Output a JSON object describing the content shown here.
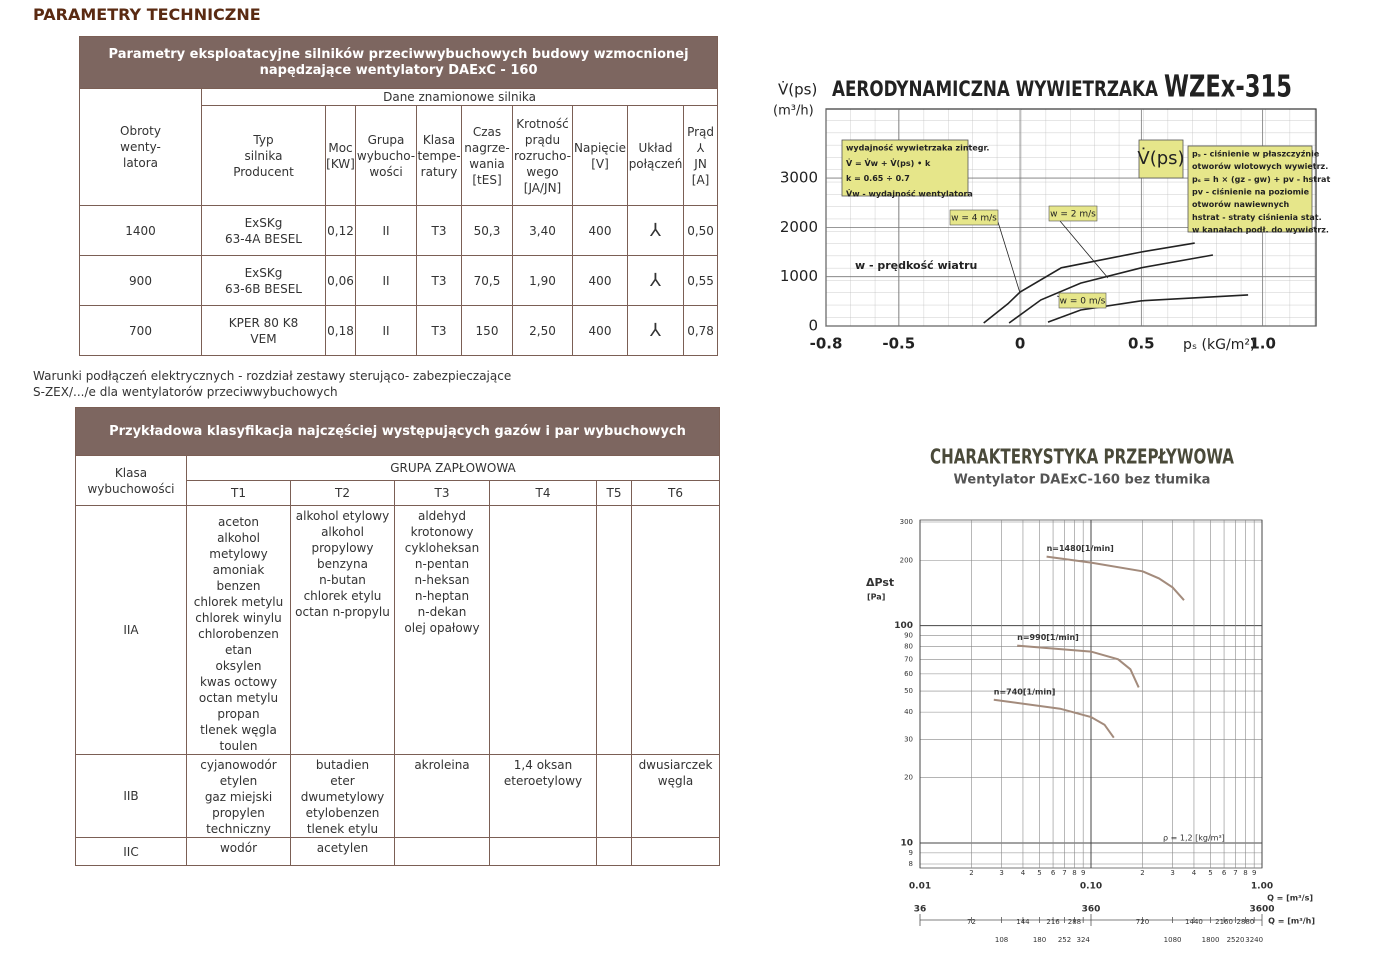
{
  "heading": "PARAMETRY TECHNICZNE",
  "table1": {
    "title": [
      "Parametry eksploatacyjne silników przeciwwybuchowych budowy wzmocnionej",
      "napędzające wentylatory DAExC - 160"
    ],
    "first_header": "Obroty\nwenty-\nlatora",
    "group_header": "Dane znamionowe silnika",
    "sub_headers": [
      "Typ\nsilnika\nProducent",
      "Moc\n[KW]",
      "Grupa\nwybucho-\nwości",
      "Klasa\ntempe-\nratury",
      "Czas\nnagrze-\nwania\n[tES]",
      "Krotność\nprądu\nrozrucho-\nwego\n[JA/JN]",
      "Napięcie\n[V]",
      "Układ\npołączeń",
      "Prąd\n⅄\nJN\n[A]"
    ],
    "rows": [
      [
        "1400",
        "ExSKg\n63-4A BESEL",
        "0,12",
        "II",
        "T3",
        "50,3",
        "3,40",
        "400",
        "⅄",
        "0,50"
      ],
      [
        "900",
        "ExSKg\n63-6B BESEL",
        "0,06",
        "II",
        "T3",
        "70,5",
        "1,90",
        "400",
        "⅄",
        "0,55"
      ],
      [
        "700",
        "KPER 80 K8\nVEM",
        "0,18",
        "II",
        "T3",
        "150",
        "2,50",
        "400",
        "⅄",
        "0,78"
      ]
    ]
  },
  "note": [
    "Warunki podłączeń elektrycznych - rozdział zestawy sterująco- zabezpieczające",
    "S-ZEX/.../e dla wentylatorów przeciwwybuchowych"
  ],
  "table2": {
    "title": "Przykładowa klasyfikacja najczęściej występujących gazów i par wybuchowych",
    "first_header": "Klasa\nwybuchowości",
    "group_header": "GRUPA ZAPŁOWOWA",
    "columns": [
      "T1",
      "T2",
      "T3",
      "T4",
      "T5",
      "T6"
    ],
    "rows": [
      {
        "class": "IIA",
        "cells": [
          "aceton\nalkohol metylowy\namoniak\nbenzen\nchlorek metylu\nchlorek winylu\nchlorobenzen\netan\noksylen\nkwas octowy\noctan metylu\npropan\ntlenek węgla\ntoulen",
          "alkohol etylowy\nalkohol\npropylowy\nbenzyna\nn-butan\nchlorek etylu\noctan n-propylu",
          "aldehyd\nkrotonowy\ncykloheksan\nn-pentan\nn-heksan\nn-heptan\nn-dekan\nolej opałowy",
          null,
          null,
          null
        ]
      },
      {
        "class": "IIB",
        "cells": [
          "cyjanowodór\netylen\ngaz miejski\npropylen\ntechniczny",
          "butadien\neter\ndwumetylowy\netylobenzen\ntlenek etylu",
          "akroleina",
          "1,4 oksan\neteroetylowy",
          null,
          "dwusiarczek\nwęgla"
        ]
      },
      {
        "class": "IIC",
        "cells": [
          "wodór",
          "acetylen",
          null,
          null,
          null,
          null
        ]
      }
    ]
  },
  "chart_data": [
    {
      "type": "line",
      "title": "AERODYNAMICZNA WYWIETRZAKA",
      "model": "WZEx-315",
      "y_label": "V̇(ps)",
      "y_unit": "(m³/h)",
      "x_label": "pₛ (kG/m²)",
      "xlim": [
        -0.8,
        1.22
      ],
      "ylim": [
        0,
        4400
      ],
      "xticks": [
        -0.8,
        -0.5,
        0,
        0.5,
        {
          "value": 1,
          "label": "1.0"
        }
      ],
      "yticks": [
        0,
        1000,
        2000,
        3000
      ],
      "grid": true,
      "series": [
        {
          "name": "w = 4 m/s",
          "color": "#222222",
          "x": [
            -0.15,
            -0.05,
            0,
            0.17,
            0.5,
            0.72
          ],
          "values": [
            60,
            450,
            690,
            1180,
            1500,
            1680
          ]
        },
        {
          "name": "w = 2 m/s",
          "color": "#222222",
          "x": [
            -0.045,
            0.086,
            0.25,
            0.5,
            0.795
          ],
          "values": [
            60,
            530,
            870,
            1180,
            1440
          ]
        },
        {
          "name": "w = 0 m/s",
          "color": "#222222",
          "x": [
            0.115,
            0.25,
            0.5,
            0.94
          ],
          "values": [
            80,
            325,
            510,
            630
          ]
        }
      ],
      "boxes": [
        [
          "wydajność wywietrzaka zintegr.",
          "V̇ = V̇w + V̇(ps) • k",
          "k = 0.65 ÷ 0.7",
          "V̇w - wydajność wentylatora"
        ],
        [
          "V̇(ps)"
        ],
        [
          "pₛ - ciśnienie w płaszczyźnie",
          "otworów wlotowych wywietrz.",
          "pₛ = h × (gz - gw) + pv - hstrat",
          "pv - ciśnienie na poziomie",
          "otworów nawiewnych",
          "hstrat - straty ciśnienia stat.",
          "w kanałach podł. do wywietrz."
        ]
      ],
      "note": "w - prędkość wiatru"
    },
    {
      "type": "line",
      "title": "CHARAKTERYSTYKA PRZEPŁYWOWA",
      "subtitle": "Wentylator DAExC-160 bez tłumika",
      "y_label": "ΔPst",
      "y_unit": "[Pa]",
      "x_label": "Q = [m³/s]",
      "x2_label": "Q = [m³/h]",
      "log_x": true,
      "log_y": true,
      "xlim": [
        0.01,
        1
      ],
      "ylim": [
        8,
        300
      ],
      "x2lim": [
        36,
        3600
      ],
      "xticks": [
        {
          "value": 0.01,
          "label": "0.01"
        },
        {
          "value": 0.02,
          "label": "2"
        },
        {
          "value": 0.03,
          "label": "3"
        },
        {
          "value": 0.04,
          "label": "4"
        },
        {
          "value": 0.05,
          "label": "5"
        },
        {
          "value": 0.06,
          "label": "6"
        },
        {
          "value": 0.07,
          "label": "7"
        },
        {
          "value": 0.08,
          "label": "8"
        },
        {
          "value": 0.09,
          "label": "9"
        },
        {
          "value": 0.1,
          "label": "0.10"
        },
        {
          "value": 0.2,
          "label": "2"
        },
        {
          "value": 0.3,
          "label": "3"
        },
        {
          "value": 0.4,
          "label": "4"
        },
        {
          "value": 0.5,
          "label": "5"
        },
        {
          "value": 0.6,
          "label": "6"
        },
        {
          "value": 0.7,
          "label": "7"
        },
        {
          "value": 0.8,
          "label": "8"
        },
        {
          "value": 0.9,
          "label": "9"
        },
        {
          "value": 1,
          "label": "1.00"
        }
      ],
      "x2ticks": [
        36,
        72,
        108,
        144,
        180,
        216,
        252,
        288,
        324,
        360,
        720,
        1080,
        1440,
        1800,
        2160,
        2520,
        2880,
        3240,
        3600
      ],
      "yticks": [
        300,
        200,
        100,
        90,
        80,
        70,
        60,
        50,
        40,
        30,
        20,
        10,
        9,
        8
      ],
      "grid": true,
      "series": [
        {
          "name": "n=1480[1/min]",
          "color": "#a38b7c",
          "x": [
            0.055,
            0.1,
            0.2,
            0.25,
            0.3,
            0.35
          ],
          "values": [
            208,
            195,
            178,
            165,
            150,
            131
          ]
        },
        {
          "name": "n=990[1/min]",
          "color": "#a38b7c",
          "x": [
            0.037,
            0.1,
            0.144,
            0.17,
            0.19
          ],
          "values": [
            81,
            76,
            70,
            63,
            52
          ]
        },
        {
          "name": "n=740[1/min]",
          "color": "#a38b7c",
          "x": [
            0.027,
            0.066,
            0.1,
            0.12,
            0.136
          ],
          "values": [
            45.6,
            41.5,
            38,
            35,
            30.5
          ]
        }
      ],
      "annotation": "ρ = 1,2 [kg/m³]"
    }
  ]
}
